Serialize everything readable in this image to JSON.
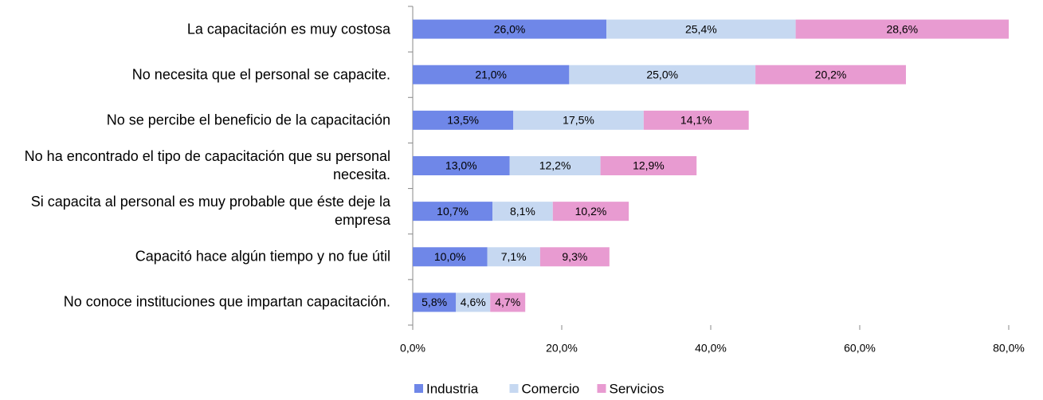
{
  "chart_data": {
    "type": "stacked-bar",
    "orientation": "horizontal",
    "categories": [
      "La capacitación es muy costosa",
      "No necesita que el personal se capacite.",
      "No se percibe el beneficio de la capacitación",
      "No ha encontrado el tipo de capacitación que su personal necesita.",
      "Si capacita al personal es muy probable que éste deje la empresa",
      "Capacitó hace algún tiempo y no fue útil",
      "No conoce instituciones que impartan capacitación."
    ],
    "series": [
      {
        "name": "Industria",
        "color": "#6f87e8",
        "values": [
          26.0,
          21.0,
          13.5,
          13.0,
          10.7,
          10.0,
          5.8
        ],
        "value_labels": [
          "26,0%",
          "21,0%",
          "13,5%",
          "13,0%",
          "10,7%",
          "10,0%",
          "5,8%"
        ]
      },
      {
        "name": "Comercio",
        "color": "#c6d8f1",
        "values": [
          25.4,
          25.0,
          17.5,
          12.2,
          8.1,
          7.1,
          4.6
        ],
        "value_labels": [
          "25,4%",
          "25,0%",
          "17,5%",
          "12,2%",
          "8,1%",
          "7,1%",
          "4,6%"
        ]
      },
      {
        "name": "Servicios",
        "color": "#e89bd1",
        "values": [
          28.6,
          20.2,
          14.1,
          12.9,
          10.2,
          9.3,
          4.7
        ],
        "value_labels": [
          "28,6%",
          "20,2%",
          "14,1%",
          "12,9%",
          "10,2%",
          "9,3%",
          "4,7%"
        ]
      }
    ],
    "xlim": [
      0,
      80
    ],
    "xticks": [
      {
        "value": 0,
        "label": "0,0%"
      },
      {
        "value": 20,
        "label": "20,0%"
      },
      {
        "value": 40,
        "label": "40,0%"
      },
      {
        "value": 60,
        "label": "60,0%"
      },
      {
        "value": 80,
        "label": "80,0%"
      }
    ],
    "legend": "bottom"
  }
}
